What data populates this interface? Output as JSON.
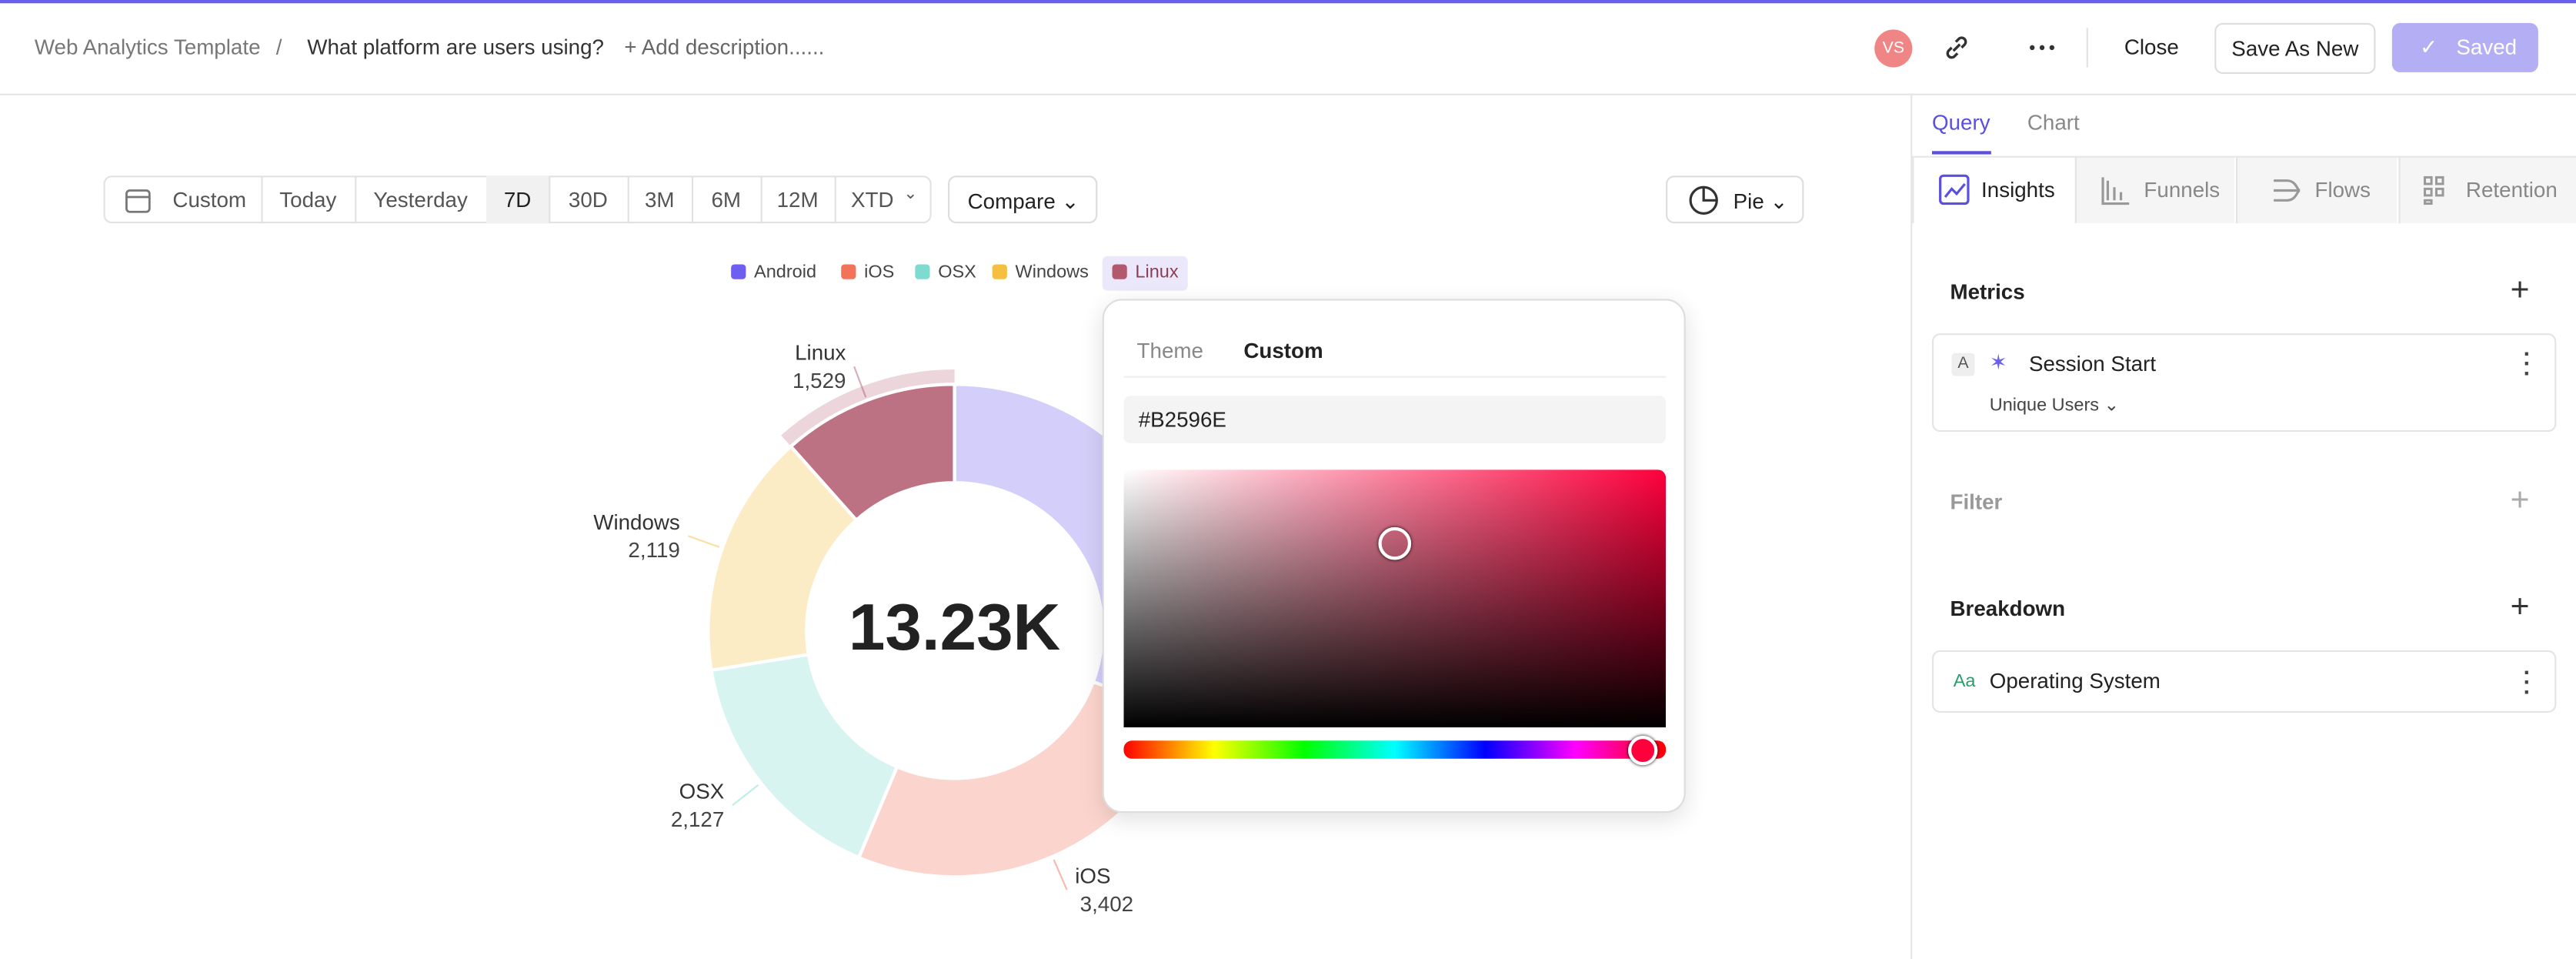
{
  "header": {
    "breadcrumb": "Web Analytics Template",
    "separator": "/",
    "title": "What platform are users using?",
    "description": "+ Add description......",
    "avatar": "VS",
    "close": "Close",
    "save_as_new": "Save As New",
    "saved": "Saved"
  },
  "toolbar": {
    "ranges": [
      "Custom",
      "Today",
      "Yesterday",
      "7D",
      "30D",
      "3M",
      "6M",
      "12M",
      "XTD"
    ],
    "compare": "Compare",
    "chart_type": "Pie"
  },
  "chart_data": {
    "type": "pie",
    "categories": [
      "Android",
      "iOS",
      "OSX",
      "Windows",
      "Linux"
    ],
    "values": [
      4053,
      3402,
      2127,
      2119,
      1529
    ],
    "value_labels": [
      null,
      "3,402",
      "2,127",
      "2,119",
      "1,529"
    ],
    "colors": [
      "#6e5ff0",
      "#f3725a",
      "#7fdbd0",
      "#f5bf42",
      "#b2596e"
    ],
    "total_label": "13.23K"
  },
  "color_picker": {
    "tabs": [
      "Theme",
      "Custom"
    ],
    "hex": "#B2596E"
  },
  "panel": {
    "tabs": [
      "Query",
      "Chart"
    ],
    "types": [
      "Insights",
      "Funnels",
      "Flows",
      "Retention"
    ],
    "metrics": "Metrics",
    "metric": {
      "letter": "A",
      "name": "Session Start",
      "aggregation": "Unique Users"
    },
    "filter": "Filter",
    "breakdown": "Breakdown",
    "breakdown_item": {
      "icon": "Aa",
      "name": "Operating System"
    }
  }
}
